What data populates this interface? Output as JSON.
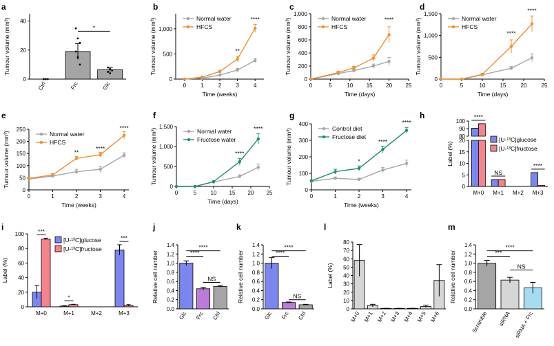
{
  "chart_data": [
    {
      "id": "a",
      "type": "bar",
      "panel_label": "a",
      "categories": [
        "Ctrl",
        "Frc",
        "Glc"
      ],
      "values": [
        0,
        19,
        6.5
      ],
      "errors": [
        0,
        5.5,
        1.5
      ],
      "colors": [
        "#ffffff",
        "#a5a5a5",
        "#a5a5a5"
      ],
      "ylabel": "Tumour volume (mm³)",
      "ylim": [
        0,
        45
      ],
      "yticks": [
        0,
        20,
        40
      ],
      "dots": [
        [
          0,
          0,
          0,
          0,
          0
        ],
        [
          35,
          28,
          25,
          19,
          15,
          10
        ],
        [
          8,
          7,
          6,
          5,
          4
        ]
      ],
      "sig": [
        {
          "from": 1,
          "to": 2,
          "text": "*",
          "y": 33
        }
      ]
    },
    {
      "id": "b",
      "type": "line",
      "panel_label": "b",
      "xlabel": "Time (weeks)",
      "ylabel": "Tumour volume (mm³)",
      "xlim": [
        -0.5,
        4.5
      ],
      "xticks": [
        0,
        1,
        2,
        3,
        4
      ],
      "ylim": [
        0,
        1300
      ],
      "yticks": [
        0,
        500,
        1000
      ],
      "series": [
        {
          "name": "Normal water",
          "color": "#a5a5a5",
          "x": [
            0,
            1,
            2,
            3,
            4
          ],
          "y": [
            0,
            20,
            80,
            180,
            370
          ],
          "err": [
            0,
            10,
            20,
            35,
            45
          ]
        },
        {
          "name": "HFCS",
          "color": "#f28e2b",
          "x": [
            0,
            1,
            2,
            3,
            4
          ],
          "y": [
            0,
            40,
            150,
            400,
            1010
          ],
          "err": [
            0,
            15,
            25,
            50,
            80
          ]
        }
      ],
      "annotations": [
        {
          "x": 3,
          "y": 520,
          "text": "**"
        },
        {
          "x": 4,
          "y": 1150,
          "text": "****"
        }
      ],
      "legend": "top-left"
    },
    {
      "id": "c",
      "type": "line",
      "panel_label": "c",
      "xlabel": "Time (days)",
      "ylabel": "Tumour volume (mm³)",
      "xlim": [
        0,
        25
      ],
      "xticks": [
        0,
        5,
        10,
        15,
        20,
        25
      ],
      "ylim": [
        0,
        1000
      ],
      "yticks": [
        0,
        200,
        400,
        600,
        800,
        1000
      ],
      "series": [
        {
          "name": "Normal water",
          "color": "#a5a5a5",
          "x": [
            0,
            7,
            11,
            16,
            20
          ],
          "y": [
            0,
            85,
            130,
            200,
            270
          ],
          "err": [
            0,
            15,
            20,
            30,
            60
          ]
        },
        {
          "name": "HFCS",
          "color": "#f28e2b",
          "x": [
            0,
            7,
            11,
            16,
            20
          ],
          "y": [
            0,
            100,
            170,
            320,
            680
          ],
          "err": [
            0,
            20,
            25,
            50,
            120
          ]
        }
      ],
      "annotations": [
        {
          "x": 20,
          "y": 880,
          "text": "****"
        }
      ],
      "legend": "top-left"
    },
    {
      "id": "d",
      "type": "line",
      "panel_label": "d",
      "xlabel": "Time (days)",
      "ylabel": "Tumour volume (mm³)",
      "xlim": [
        0,
        25
      ],
      "xticks": [
        0,
        5,
        10,
        15,
        20,
        25
      ],
      "ylim": [
        0,
        1500
      ],
      "yticks": [
        0,
        500,
        1000,
        1500
      ],
      "series": [
        {
          "name": "Normal water",
          "color": "#a5a5a5",
          "x": [
            0,
            5,
            10,
            17,
            22
          ],
          "y": [
            0,
            0,
            100,
            250,
            490
          ],
          "err": [
            0,
            0,
            20,
            40,
            90
          ]
        },
        {
          "name": "HFCS",
          "color": "#f28e2b",
          "x": [
            0,
            5,
            10,
            17,
            22
          ],
          "y": [
            0,
            0,
            110,
            750,
            1270
          ],
          "err": [
            0,
            0,
            20,
            150,
            180
          ]
        }
      ],
      "annotations": [
        {
          "x": 17,
          "y": 1000,
          "text": "****"
        },
        {
          "x": 22,
          "y": 1520,
          "text": "****"
        }
      ],
      "legend": "top-left"
    },
    {
      "id": "e",
      "type": "line",
      "panel_label": "e",
      "xlabel": "Time (weeks)",
      "ylabel": "Tumour volume (mm³)",
      "xlim": [
        0,
        4.2
      ],
      "xticks": [
        0,
        1,
        2,
        3,
        4
      ],
      "ylim": [
        0,
        250
      ],
      "yticks": [
        0,
        50,
        100,
        150,
        200,
        250
      ],
      "series": [
        {
          "name": "Normal water",
          "color": "#a5a5a5",
          "x": [
            0,
            1,
            2,
            3,
            4
          ],
          "y": [
            45,
            57,
            75,
            85,
            143
          ],
          "err": [
            3,
            5,
            10,
            12,
            10
          ]
        },
        {
          "name": "HFCS",
          "color": "#f28e2b",
          "x": [
            0,
            1,
            2,
            3,
            4
          ],
          "y": [
            47,
            62,
            130,
            145,
            225
          ],
          "err": [
            3,
            5,
            8,
            10,
            15
          ]
        }
      ],
      "annotations": [
        {
          "x": 2,
          "y": 147,
          "text": "**"
        },
        {
          "x": 3,
          "y": 162,
          "text": "****"
        },
        {
          "x": 4,
          "y": 247,
          "text": "****"
        }
      ],
      "legend": "top-left"
    },
    {
      "id": "f",
      "type": "line",
      "panel_label": "f",
      "xlabel": "Time (days)",
      "ylabel": "Tumour volume (mm³)",
      "xlim": [
        0,
        25
      ],
      "xticks": [
        0,
        5,
        10,
        15,
        20,
        25
      ],
      "ylim": [
        0,
        1500
      ],
      "yticks": [
        0,
        500,
        1000,
        1500
      ],
      "series": [
        {
          "name": "Normal water",
          "color": "#a5a5a5",
          "x": [
            0,
            5,
            10,
            17,
            22
          ],
          "y": [
            0,
            0,
            110,
            250,
            480
          ],
          "err": [
            0,
            0,
            20,
            40,
            80
          ]
        },
        {
          "name": "Fructose water",
          "color": "#1b8e6f",
          "x": [
            0,
            5,
            10,
            17,
            22
          ],
          "y": [
            0,
            0,
            120,
            620,
            1190
          ],
          "err": [
            0,
            0,
            20,
            80,
            130
          ]
        }
      ],
      "annotations": [
        {
          "x": 17,
          "y": 780,
          "text": "****"
        },
        {
          "x": 22,
          "y": 1400,
          "text": "****"
        }
      ],
      "legend": "top-left"
    },
    {
      "id": "g",
      "type": "line",
      "panel_label": "g",
      "xlabel": "Time (weeks)",
      "ylabel": "Tumour volume (mm³)",
      "xlim": [
        0,
        4.2
      ],
      "xticks": [
        0,
        1,
        2,
        3,
        4
      ],
      "ylim": [
        0,
        400
      ],
      "yticks": [
        0,
        100,
        200,
        300,
        400
      ],
      "series": [
        {
          "name": "Control diet",
          "color": "#a5a5a5",
          "x": [
            0,
            1,
            2,
            3,
            4
          ],
          "y": [
            52,
            70,
            63,
            120,
            160
          ],
          "err": [
            5,
            8,
            8,
            15,
            20
          ]
        },
        {
          "name": "Fructose diet",
          "color": "#1b8e6f",
          "x": [
            0,
            1,
            2,
            3,
            4
          ],
          "y": [
            55,
            110,
            130,
            245,
            360
          ],
          "err": [
            5,
            15,
            15,
            20,
            18
          ]
        }
      ],
      "annotations": [
        {
          "x": 2,
          "y": 160,
          "text": "*"
        },
        {
          "x": 3,
          "y": 280,
          "text": "****"
        },
        {
          "x": 4,
          "y": 395,
          "text": "****"
        }
      ],
      "legend": "top-left"
    },
    {
      "id": "h",
      "type": "bar",
      "panel_label": "h",
      "categories": [
        "M+0",
        "M+1",
        "M+2",
        "M+3"
      ],
      "ylabel": "Label (%)",
      "broken_axis": {
        "upper": [
          80,
          100
        ],
        "lower": [
          0,
          20
        ],
        "upper_ticks": [
          80,
          90,
          100
        ],
        "lower_ticks": [
          0,
          5,
          10,
          15,
          20
        ]
      },
      "series": [
        {
          "name": "[U-¹³C]glucose",
          "color": "#7b86ee",
          "values": [
            90.5,
            3,
            0,
            6
          ],
          "err": [
            0.5,
            0.3,
            0,
            0.4
          ]
        },
        {
          "name": "[U-¹³C]fructose",
          "color": "#f4838c",
          "values": [
            96.5,
            3,
            0,
            0.5
          ],
          "err": [
            0.4,
            0.3,
            0,
            0.1
          ]
        }
      ],
      "sig": [
        {
          "cat": 0,
          "text": "****"
        },
        {
          "cat": 1,
          "text": "NS"
        },
        {
          "cat": 3,
          "text": "****"
        }
      ],
      "legend": "right"
    },
    {
      "id": "i",
      "type": "bar",
      "panel_label": "i",
      "categories": [
        "M+0",
        "M+1",
        "M+2",
        "M+3"
      ],
      "ylabel": "Label (%)",
      "ylim": [
        0,
        100
      ],
      "yticks": [
        0,
        20,
        40,
        60,
        80,
        100
      ],
      "series": [
        {
          "name": "[U-¹³C]glucose",
          "color": "#7b86ee",
          "values": [
            20,
            1,
            0,
            78
          ],
          "err": [
            9,
            0.5,
            0,
            7
          ]
        },
        {
          "name": "[U-¹³C]fructose",
          "color": "#f4838c",
          "values": [
            93,
            3,
            0,
            2
          ],
          "err": [
            1,
            0.5,
            0,
            1
          ]
        }
      ],
      "sig": [
        {
          "cat": 0,
          "text": "***"
        },
        {
          "cat": 1,
          "text": "*"
        },
        {
          "cat": 3,
          "text": "***"
        }
      ],
      "legend": "top-left"
    },
    {
      "id": "j",
      "type": "bar",
      "panel_label": "j",
      "categories": [
        "Glc",
        "Frc",
        "Ctrl"
      ],
      "values": [
        1.0,
        0.44,
        0.49
      ],
      "errors": [
        0.05,
        0.03,
        0.02
      ],
      "colors": [
        "#7b86ee",
        "#bb7bdb",
        "#a5a5a5"
      ],
      "ylabel": "Relative cell number",
      "ylim": [
        0,
        1.4
      ],
      "yticks": [
        0,
        0.2,
        0.4,
        0.6,
        0.8,
        1.0,
        1.2,
        1.4
      ],
      "sig": [
        {
          "from": 0,
          "to": 2,
          "text": "****",
          "y": 1.27
        },
        {
          "from": 0,
          "to": 1,
          "text": "****",
          "y": 1.15
        },
        {
          "from": 1,
          "to": 2,
          "text": "NS",
          "y": 0.58
        }
      ]
    },
    {
      "id": "k",
      "type": "bar",
      "panel_label": "k",
      "categories": [
        "Glc",
        "Frc",
        "Ctrl"
      ],
      "values": [
        1.0,
        0.14,
        0.09
      ],
      "errors": [
        0.12,
        0.01,
        0.01
      ],
      "colors": [
        "#7b86ee",
        "#bb7bdb",
        "#a5a5a5"
      ],
      "ylabel": "Relative cell number",
      "ylim": [
        0,
        1.4
      ],
      "yticks": [
        0,
        0.2,
        0.4,
        0.6,
        0.8,
        1.0,
        1.2,
        1.4
      ],
      "sig": [
        {
          "from": 0,
          "to": 2,
          "text": "****",
          "y": 1.27
        },
        {
          "from": 0,
          "to": 1,
          "text": "****",
          "y": 1.15
        },
        {
          "from": 1,
          "to": 2,
          "text": "NS",
          "y": 0.2
        }
      ]
    },
    {
      "id": "l",
      "type": "bar",
      "panel_label": "l",
      "categories": [
        "M+0",
        "M+1",
        "M+2",
        "M+3",
        "M+4",
        "M+5",
        "M+6"
      ],
      "values": [
        58,
        4,
        0.5,
        0.5,
        0.5,
        3,
        34
      ],
      "errors": [
        19,
        1.5,
        0.2,
        0.2,
        0.2,
        1.5,
        19
      ],
      "colors": [
        "#d6d6d6",
        "#d6d6d6",
        "#d6d6d6",
        "#d6d6d6",
        "#d6d6d6",
        "#d6d6d6",
        "#d6d6d6"
      ],
      "ylabel": "Label (%)",
      "ylim": [
        0,
        80
      ],
      "yticks": [
        0,
        10,
        20,
        30,
        40,
        50,
        60,
        70,
        80
      ]
    },
    {
      "id": "m",
      "type": "bar",
      "panel_label": "m",
      "categories": [
        "Scramble",
        "siRNA",
        "siRNA + Frc"
      ],
      "values": [
        1.0,
        0.63,
        0.46
      ],
      "errors": [
        0.06,
        0.06,
        0.12
      ],
      "colors": [
        "#a5a5a5",
        "#d6d6d6",
        "#a6dcef"
      ],
      "ylabel": "Relative cell number",
      "ylim": [
        0,
        1.4
      ],
      "yticks": [
        0,
        0.2,
        0.4,
        0.6,
        0.8,
        1.0,
        1.2,
        1.4
      ],
      "sig": [
        {
          "from": 0,
          "to": 2,
          "text": "****",
          "y": 1.27
        },
        {
          "from": 0,
          "to": 1,
          "text": "***",
          "y": 1.15
        },
        {
          "from": 1,
          "to": 2,
          "text": "NS",
          "y": 0.85
        }
      ]
    }
  ]
}
